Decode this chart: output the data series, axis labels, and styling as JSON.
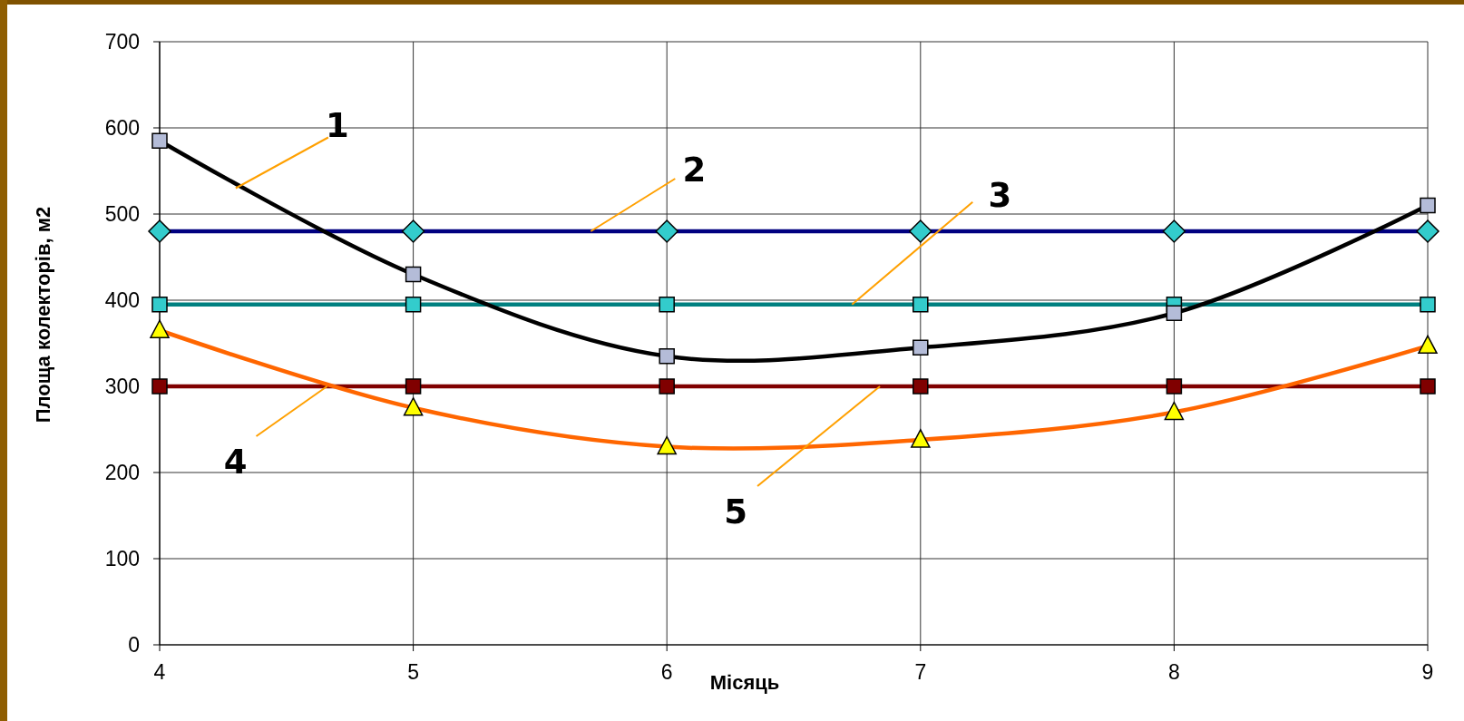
{
  "chart_data": {
    "type": "line",
    "xlabel": "Місяць",
    "ylabel": "Площа колекторів, м2",
    "x": [
      4,
      5,
      6,
      7,
      8,
      9
    ],
    "xlim": [
      4,
      9
    ],
    "xticks": [
      4,
      5,
      6,
      7,
      8,
      9
    ],
    "ylim": [
      0,
      700
    ],
    "yticks": [
      0,
      100,
      200,
      300,
      400,
      500,
      600,
      700
    ],
    "grid": true,
    "series": [
      {
        "color": "#000080",
        "colors": [
          "#33cccc",
          "#33cccc",
          "#33cccc",
          "#33cccc",
          "#33cccc",
          "#33cccc"
        ],
        "marker": "diamond",
        "values": [
          480,
          480,
          480,
          480,
          480,
          480
        ]
      },
      {
        "color": "#008080",
        "colors": [
          "#33cccc",
          "#33cccc",
          "#33cccc",
          "#33cccc",
          "#33cccc",
          "#33cccc"
        ],
        "marker": "square",
        "values": [
          395,
          395,
          395,
          395,
          395,
          395
        ]
      },
      {
        "color": "#800000",
        "colors": [
          "#800000",
          "#800000",
          "#800000",
          "#800000",
          "#800000",
          "#800000"
        ],
        "marker": "square",
        "values": [
          300,
          300,
          300,
          300,
          300,
          300
        ]
      },
      {
        "color": "#000000",
        "colors": [
          "#b4bcd8",
          "#b4bcd8",
          "#b4bcd8",
          "#b4bcd8",
          "#b4bcd8",
          "#b4bcd8"
        ],
        "marker": "square",
        "values": [
          585,
          430,
          335,
          345,
          385,
          510
        ]
      },
      {
        "color": "#ff6600",
        "colors": [
          "#ffff00",
          "#ffff00",
          "#ffff00",
          "#ffff00",
          "#ffff00",
          "#ffff00"
        ],
        "marker": "triangle",
        "values": [
          365,
          275,
          230,
          238,
          270,
          347
        ]
      }
    ],
    "annotations": [
      {
        "text": "1",
        "x": 4.3,
        "y": 530
      },
      {
        "text": "2",
        "x": 5.7,
        "y": 480
      },
      {
        "text": "3",
        "x": 6.73,
        "y": 395
      },
      {
        "text": "4",
        "x": 4.66,
        "y": 300
      },
      {
        "text": "5",
        "x": 6.84,
        "y": 300
      }
    ]
  }
}
